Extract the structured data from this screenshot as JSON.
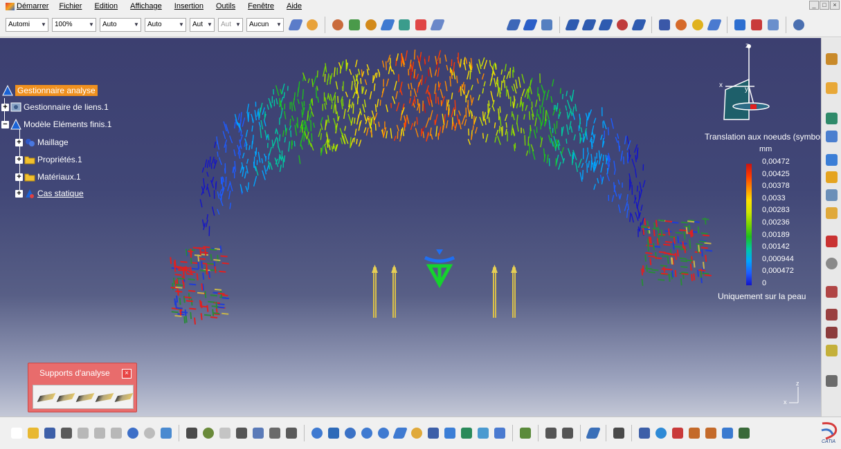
{
  "menu": {
    "start": "Démarrer",
    "items": [
      "Fichier",
      "Edition",
      "Affichage",
      "Insertion",
      "Outils",
      "Fenêtre",
      "Aide"
    ]
  },
  "window_controls": [
    "_",
    "□",
    "×"
  ],
  "toolbar": {
    "combos": [
      {
        "value": "Automi"
      },
      {
        "value": "100%"
      },
      {
        "value": "Auto"
      },
      {
        "value": "Auto"
      },
      {
        "value": "Aut"
      },
      {
        "value": "Aut"
      },
      {
        "value": "Aucun"
      }
    ]
  },
  "tree": {
    "root": "Gestionnaire analyse",
    "links": "Gestionnaire de liens.1",
    "fem": "Modèle Eléments finis.1",
    "mesh": "Maillage",
    "props": "Propriétés.1",
    "materials": "Matériaux.1",
    "static_case": "Cas statique"
  },
  "legend": {
    "title": "Translation aux noeuds (symbole",
    "unit": "mm",
    "values": [
      "0,00472",
      "0,00425",
      "0,00378",
      "0,0033",
      "0,00283",
      "0,00236",
      "0,00189",
      "0,00142",
      "0,000944",
      "0,000472",
      "0"
    ],
    "colors": [
      "#c81414",
      "#ff3a00",
      "#ff8c00",
      "#ffe000",
      "#cde600",
      "#7ad400",
      "#1ebe1e",
      "#00c8a0",
      "#00a6ff",
      "#1e5cff",
      "#1414c8"
    ],
    "note": "Uniquement sur la peau"
  },
  "compass": {
    "x": "x",
    "y": "y",
    "z": "z"
  },
  "axis_triad": {
    "x": "x",
    "z": "z"
  },
  "supports_panel": {
    "title": "Supports d'analyse",
    "close": "×"
  },
  "brand": {
    "logo_text": "CATIA"
  },
  "colors": {
    "tree_selection": "#f0911f",
    "panel": "#e86c6c",
    "viewport_top": "#3c3f70"
  }
}
